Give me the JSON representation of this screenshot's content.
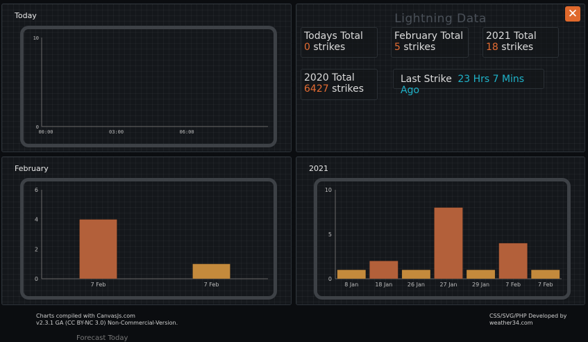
{
  "panels": {
    "today": {
      "title": "Today"
    },
    "february": {
      "title": "February"
    },
    "year": {
      "title": "2021"
    }
  },
  "info": {
    "title": "Lightning Data",
    "close_icon": "close-icon",
    "todays_total_label": "Todays Total",
    "todays_total_value": "0",
    "february_total_label": "February Total",
    "february_total_value": "5",
    "year_total_label": "2021 Total",
    "year_total_value": "18",
    "prev_year_total_label": "2020 Total",
    "prev_year_total_value": "6427",
    "strikes_unit": "strikes",
    "last_strike_label": "Last Strike",
    "last_strike_value": "23 Hrs 7 Mins Ago"
  },
  "colors": {
    "accent": "#e56c33",
    "bar_orange": "#b3603a",
    "bar_gold": "#c48a3c",
    "cyan": "#1fb3c9",
    "close_bg": "#e0692c"
  },
  "footer": {
    "left_line1": "Charts compiled with CanvasJs.com",
    "left_line2": "v2.3.1 GA (CC BY-NC 3.0) Non-Commercial-Version.",
    "right_line1": "CSS/SVG/PHP Developed by",
    "right_line2": "weather34.com",
    "bottom_hint": "Forecast Today"
  },
  "chart_data": [
    {
      "type": "line",
      "title": "Today",
      "x_ticks": [
        "00:00",
        "03:00",
        "06:00"
      ],
      "y_ticks": [
        "0",
        "10"
      ],
      "ylim": [
        0,
        10
      ],
      "series": [
        {
          "values": []
        }
      ]
    },
    {
      "type": "bar",
      "title": "February",
      "categories": [
        "7 Feb",
        "7 Feb"
      ],
      "values": [
        4,
        1
      ],
      "y_ticks": [
        "0",
        "2",
        "4",
        "6"
      ],
      "ylim": [
        0,
        6
      ],
      "bar_colors": [
        "#b3603a",
        "#c48a3c"
      ]
    },
    {
      "type": "bar",
      "title": "2021",
      "categories": [
        "8 Jan",
        "18 Jan",
        "26 Jan",
        "27 Jan",
        "29 Jan",
        "7 Feb",
        "7 Feb"
      ],
      "values": [
        1,
        2,
        1,
        8,
        1,
        4,
        1
      ],
      "y_ticks": [
        "0",
        "5",
        "10"
      ],
      "ylim": [
        0,
        10
      ],
      "bar_colors": [
        "#c48a3c",
        "#b3603a",
        "#c48a3c",
        "#b3603a",
        "#c48a3c",
        "#b3603a",
        "#c48a3c"
      ]
    }
  ]
}
